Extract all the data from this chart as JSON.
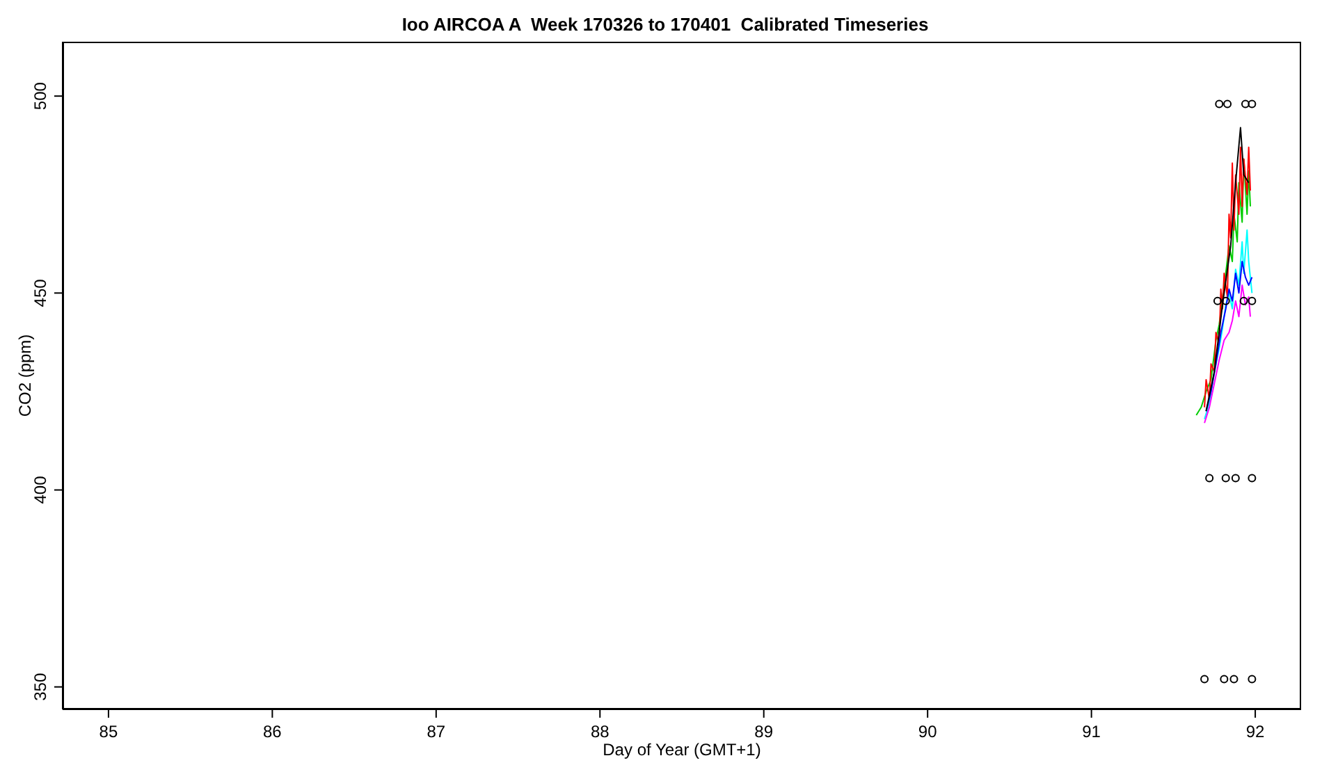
{
  "chart_data": {
    "type": "line",
    "title": "Ioo AIRCOA A  Week 170326 to 170401  Calibrated Timeseries",
    "xlabel": "Day of Year (GMT+1)",
    "ylabel": "CO2 (ppm)",
    "xlim": [
      84.72,
      92.28
    ],
    "xticks": [
      85,
      86,
      87,
      88,
      89,
      90,
      91,
      92
    ],
    "ylim": [
      344.3,
      513.8
    ],
    "yticks": [
      350,
      400,
      450,
      500
    ],
    "series": [
      {
        "color": "#00cd00",
        "x": [
          91.64,
          91.67,
          91.7,
          91.73,
          91.76,
          91.78,
          91.8,
          91.82,
          91.84,
          91.86,
          91.87,
          91.89,
          91.9,
          91.92,
          91.93,
          91.95,
          91.96,
          91.97
        ],
        "values": [
          419,
          421,
          425,
          428,
          438,
          442,
          449,
          455,
          462,
          458,
          470,
          463,
          478,
          468,
          484,
          470,
          481,
          472
        ]
      },
      {
        "color": "#ff0000",
        "x": [
          91.69,
          91.7,
          91.72,
          91.73,
          91.75,
          91.76,
          91.78,
          91.79,
          91.8,
          91.81,
          91.83,
          91.84,
          91.85,
          91.86,
          91.87,
          91.88,
          91.9,
          91.91,
          91.92,
          91.93,
          91.95,
          91.96,
          91.97
        ],
        "values": [
          421,
          428,
          423,
          432,
          430,
          440,
          437,
          451,
          446,
          455,
          449,
          470,
          464,
          483,
          466,
          480,
          470,
          487,
          472,
          484,
          475,
          487,
          476
        ]
      },
      {
        "color": "#00ffff",
        "x": [
          91.69,
          91.72,
          91.75,
          91.78,
          91.8,
          91.82,
          91.84,
          91.86,
          91.88,
          91.9,
          91.92,
          91.93,
          91.95,
          91.96,
          91.98
        ],
        "values": [
          418,
          422,
          430,
          436,
          441,
          447,
          450,
          446,
          456,
          452,
          463,
          455,
          466,
          458,
          450
        ]
      },
      {
        "color": "#0000ff",
        "x": [
          91.7,
          91.73,
          91.76,
          91.79,
          91.82,
          91.84,
          91.86,
          91.88,
          91.9,
          91.92,
          91.94,
          91.96,
          91.98
        ],
        "values": [
          420,
          425,
          432,
          440,
          446,
          451,
          448,
          455,
          450,
          458,
          454,
          452,
          454
        ]
      },
      {
        "color": "#ff00ff",
        "x": [
          91.69,
          91.72,
          91.75,
          91.78,
          91.81,
          91.84,
          91.86,
          91.88,
          91.9,
          91.92,
          91.94,
          91.96,
          91.97
        ],
        "values": [
          417,
          421,
          427,
          433,
          438,
          440,
          443,
          448,
          444,
          452,
          447,
          449,
          444
        ]
      },
      {
        "color": "#000000",
        "x": [
          91.7,
          91.75,
          91.8,
          91.85,
          91.88,
          91.91,
          91.93,
          91.96
        ],
        "values": [
          420,
          430,
          447,
          462,
          478,
          492,
          480,
          478
        ]
      },
      {
        "type": "scatter",
        "marker": "circle",
        "color": "#000000",
        "x": [
          91.78,
          91.83,
          91.94,
          91.98,
          91.77,
          91.82,
          91.93,
          91.98,
          91.72,
          91.82,
          91.88,
          91.98,
          91.69,
          91.81,
          91.87,
          91.98
        ],
        "values": [
          498,
          498,
          498,
          498,
          448,
          448,
          448,
          448,
          403,
          403,
          403,
          403,
          352,
          352,
          352,
          352
        ]
      }
    ]
  }
}
